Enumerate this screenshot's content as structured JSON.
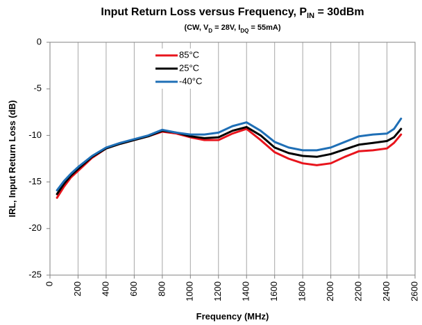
{
  "chart_data": {
    "type": "line",
    "title": [
      "Input Return Loss versus Frequency, P",
      "IN",
      " = 30dBm"
    ],
    "subtitle": [
      "(CW, V",
      "D",
      " = 28V, I",
      "DQ",
      " = 55mA)"
    ],
    "x_label": "Frequency (MHz)",
    "y_label": "IRL, Input Return Loss (dB)",
    "x": [
      50,
      100,
      150,
      200,
      300,
      400,
      500,
      600,
      700,
      800,
      900,
      1000,
      1100,
      1200,
      1300,
      1400,
      1500,
      1600,
      1700,
      1800,
      1900,
      2000,
      2100,
      2200,
      2300,
      2400,
      2450,
      2500
    ],
    "series": [
      {
        "name": "85°C",
        "color": "#e8141c",
        "values": [
          -16.7,
          -15.5,
          -14.5,
          -13.8,
          -12.4,
          -11.4,
          -10.9,
          -10.5,
          -10.1,
          -9.6,
          -9.8,
          -10.2,
          -10.5,
          -10.5,
          -9.8,
          -9.3,
          -10.5,
          -11.8,
          -12.5,
          -13.0,
          -13.2,
          -13.0,
          -12.3,
          -11.7,
          -11.6,
          -11.4,
          -10.8,
          -9.9
        ]
      },
      {
        "name": "25°C",
        "color": "#000000",
        "values": [
          -16.3,
          -15.2,
          -14.3,
          -13.6,
          -12.3,
          -11.4,
          -10.9,
          -10.5,
          -10.1,
          -9.5,
          -9.7,
          -10.1,
          -10.3,
          -10.2,
          -9.5,
          -9.1,
          -10.0,
          -11.3,
          -11.9,
          -12.2,
          -12.3,
          -12.0,
          -11.5,
          -11.0,
          -10.8,
          -10.6,
          -10.2,
          -9.3
        ]
      },
      {
        "name": "-40°C",
        "color": "#1f6fb6",
        "values": [
          -15.9,
          -14.9,
          -14.1,
          -13.4,
          -12.2,
          -11.3,
          -10.8,
          -10.4,
          -10.0,
          -9.4,
          -9.7,
          -9.9,
          -9.9,
          -9.7,
          -9.0,
          -8.6,
          -9.5,
          -10.7,
          -11.3,
          -11.6,
          -11.6,
          -11.3,
          -10.7,
          -10.1,
          -9.9,
          -9.8,
          -9.3,
          -8.2
        ]
      }
    ],
    "xlim": [
      0,
      2600
    ],
    "xticks": [
      0,
      200,
      400,
      600,
      800,
      1000,
      1200,
      1400,
      1600,
      1800,
      2000,
      2200,
      2400,
      2600
    ],
    "ylim": [
      -25,
      0
    ],
    "yticks": [
      -25,
      -20,
      -15,
      -10,
      -5,
      0
    ],
    "grid": "x"
  }
}
